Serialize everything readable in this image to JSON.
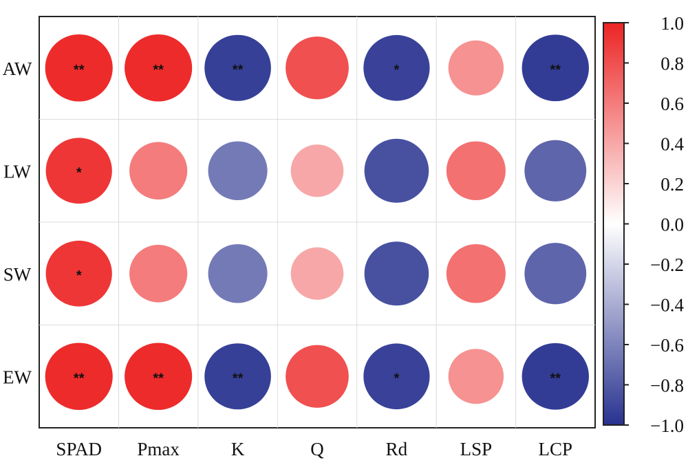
{
  "chart_data": {
    "type": "heatmap",
    "title": "",
    "xlabel": "",
    "ylabel": "",
    "columns": [
      "SPAD",
      "Pmax",
      "K",
      "Q",
      "Rd",
      "LSP",
      "LCP"
    ],
    "rows": [
      "AW",
      "LW",
      "SW",
      "EW"
    ],
    "values": [
      [
        0.97,
        0.97,
        -0.93,
        0.8,
        -0.92,
        0.5,
        -0.95
      ],
      [
        0.92,
        0.6,
        -0.65,
        0.4,
        -0.85,
        0.65,
        -0.75
      ],
      [
        0.92,
        0.6,
        -0.65,
        0.4,
        -0.85,
        0.65,
        -0.75
      ],
      [
        0.97,
        0.97,
        -0.93,
        0.8,
        -0.92,
        0.5,
        -0.95
      ]
    ],
    "significance": [
      [
        "**",
        "**",
        "**",
        "",
        "*",
        "",
        "**"
      ],
      [
        "*",
        "",
        "",
        "",
        "",
        "",
        ""
      ],
      [
        "*",
        "",
        "",
        "",
        "",
        "",
        ""
      ],
      [
        "**",
        "**",
        "**",
        "",
        "*",
        "",
        "**"
      ]
    ],
    "colorbar": {
      "min": -1.0,
      "max": 1.0,
      "ticks": [
        "1.0",
        "0.8",
        "0.6",
        "0.4",
        "0.2",
        "0.0",
        "−0.2",
        "−0.4",
        "−0.6",
        "−0.8",
        "−1.0"
      ],
      "colors": {
        "negative": "#28328f",
        "neutral": "#ffffff",
        "positive": "#ec2424"
      }
    },
    "grid": true,
    "legend": "right"
  }
}
